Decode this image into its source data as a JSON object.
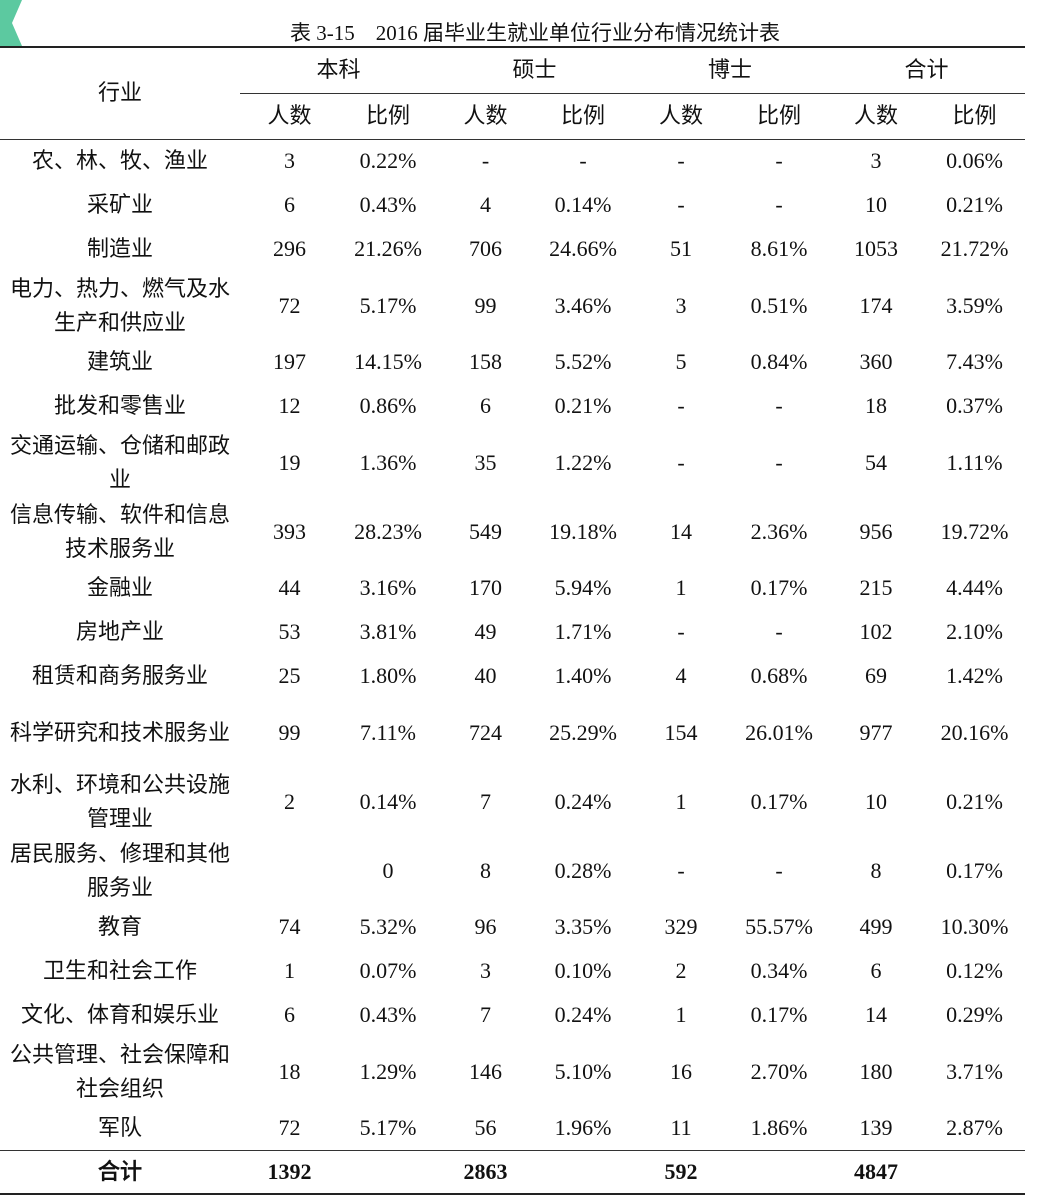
{
  "title": "表 3-15　2016 届毕业生就业单位行业分布情况统计表",
  "header": {
    "industry": "行业",
    "groups": [
      "本科",
      "硕士",
      "博士",
      "合计"
    ],
    "sub": [
      "人数",
      "比例",
      "人数",
      "比例",
      "人数",
      "比例",
      "人数",
      "比例"
    ]
  },
  "rows": [
    [
      "农、林、牧、渔业",
      "3",
      "0.22%",
      "-",
      "-",
      "-",
      "-",
      "3",
      "0.06%"
    ],
    [
      "采矿业",
      "6",
      "0.43%",
      "4",
      "0.14%",
      "-",
      "-",
      "10",
      "0.21%"
    ],
    [
      "制造业",
      "296",
      "21.26%",
      "706",
      "24.66%",
      "51",
      "8.61%",
      "1053",
      "21.72%"
    ],
    [
      "电力、热力、燃气及水生产和供应业",
      "72",
      "5.17%",
      "99",
      "3.46%",
      "3",
      "0.51%",
      "174",
      "3.59%"
    ],
    [
      "建筑业",
      "197",
      "14.15%",
      "158",
      "5.52%",
      "5",
      "0.84%",
      "360",
      "7.43%"
    ],
    [
      "批发和零售业",
      "12",
      "0.86%",
      "6",
      "0.21%",
      "-",
      "-",
      "18",
      "0.37%"
    ],
    [
      "交通运输、仓储和邮政业",
      "19",
      "1.36%",
      "35",
      "1.22%",
      "-",
      "-",
      "54",
      "1.11%"
    ],
    [
      "信息传输、软件和信息技术服务业",
      "393",
      "28.23%",
      "549",
      "19.18%",
      "14",
      "2.36%",
      "956",
      "19.72%"
    ],
    [
      "金融业",
      "44",
      "3.16%",
      "170",
      "5.94%",
      "1",
      "0.17%",
      "215",
      "4.44%"
    ],
    [
      "房地产业",
      "53",
      "3.81%",
      "49",
      "1.71%",
      "-",
      "-",
      "102",
      "2.10%"
    ],
    [
      "租赁和商务服务业",
      "25",
      "1.80%",
      "40",
      "1.40%",
      "4",
      "0.68%",
      "69",
      "1.42%"
    ],
    [
      "科学研究和技术服务业",
      "99",
      "7.11%",
      "724",
      "25.29%",
      "154",
      "26.01%",
      "977",
      "20.16%"
    ],
    [
      "水利、环境和公共设施管理业",
      "2",
      "0.14%",
      "7",
      "0.24%",
      "1",
      "0.17%",
      "10",
      "0.21%"
    ],
    [
      "居民服务、修理和其他服务业",
      null,
      "0",
      "8",
      "0.28%",
      "-",
      "-",
      "8",
      "0.17%"
    ],
    [
      "教育",
      "74",
      "5.32%",
      "96",
      "3.35%",
      "329",
      "55.57%",
      "499",
      "10.30%"
    ],
    [
      "卫生和社会工作",
      "1",
      "0.07%",
      "3",
      "0.10%",
      "2",
      "0.34%",
      "6",
      "0.12%"
    ],
    [
      "文化、体育和娱乐业",
      "6",
      "0.43%",
      "7",
      "0.24%",
      "1",
      "0.17%",
      "14",
      "0.29%"
    ],
    [
      "公共管理、社会保障和社会组织",
      "18",
      "1.29%",
      "146",
      "5.10%",
      "16",
      "2.70%",
      "180",
      "3.71%"
    ],
    [
      "军队",
      "72",
      "5.17%",
      "56",
      "1.96%",
      "11",
      "1.86%",
      "139",
      "2.87%"
    ]
  ],
  "total": [
    "合计",
    "1392",
    null,
    "2863",
    null,
    "592",
    null,
    "4847",
    null
  ]
}
